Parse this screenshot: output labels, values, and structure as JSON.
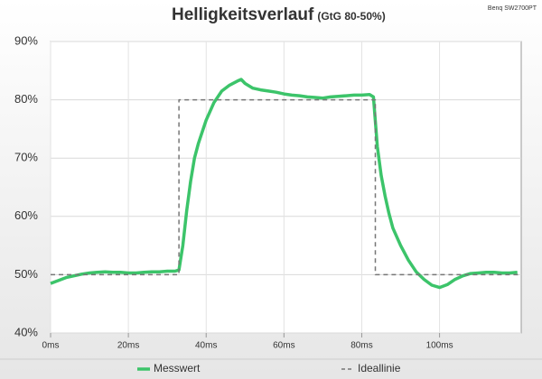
{
  "chart_data": {
    "type": "line",
    "title": "Helligkeitsverlauf",
    "subtitle": "(GtG 80-50%)",
    "source": "Benq SW2700PT",
    "xlim": [
      0,
      121
    ],
    "xticks": [
      {
        "value": 0,
        "label": "0ms"
      },
      {
        "value": 20,
        "label": "20ms"
      },
      {
        "value": 40,
        "label": "40ms"
      },
      {
        "value": 60,
        "label": "60ms"
      },
      {
        "value": 80,
        "label": "80ms"
      },
      {
        "value": 100,
        "label": "100ms"
      }
    ],
    "ylim": [
      40,
      90
    ],
    "yticks": [
      {
        "value": 40,
        "label": "40%"
      },
      {
        "value": 50,
        "label": "50%"
      },
      {
        "value": 60,
        "label": "60%"
      },
      {
        "value": 70,
        "label": "70%"
      },
      {
        "value": 80,
        "label": "80%"
      },
      {
        "value": 90,
        "label": "90%"
      }
    ],
    "grid": true,
    "series": [
      {
        "name": "Messwert",
        "color": "#3cc46a",
        "dash": false,
        "x": [
          0,
          2,
          4,
          6,
          8,
          10,
          12,
          14,
          16,
          18,
          20,
          22,
          24,
          26,
          28,
          30,
          32,
          33,
          34,
          35,
          36,
          37,
          38,
          39,
          40,
          42,
          44,
          46,
          48,
          49,
          50,
          52,
          54,
          56,
          58,
          60,
          62,
          64,
          66,
          68,
          70,
          72,
          74,
          76,
          78,
          80,
          82,
          83,
          84,
          85,
          86,
          87,
          88,
          90,
          92,
          94,
          96,
          98,
          100,
          102,
          104,
          106,
          108,
          110,
          112,
          114,
          116,
          118,
          120
        ],
        "values": [
          48.5,
          49,
          49.5,
          49.8,
          50.1,
          50.3,
          50.4,
          50.5,
          50.4,
          50.4,
          50.3,
          50.3,
          50.4,
          50.5,
          50.5,
          50.6,
          50.6,
          50.8,
          55,
          61,
          66,
          70,
          72.5,
          74.5,
          76.5,
          79.5,
          81.5,
          82.5,
          83.2,
          83.5,
          82.8,
          82,
          81.7,
          81.5,
          81.3,
          81,
          80.8,
          80.7,
          80.5,
          80.4,
          80.3,
          80.5,
          80.6,
          80.7,
          80.8,
          80.8,
          80.9,
          80.5,
          72,
          67,
          63.5,
          60.5,
          58,
          55,
          52.5,
          50.5,
          49.2,
          48.2,
          47.8,
          48.3,
          49.2,
          49.8,
          50.2,
          50.3,
          50.4,
          50.4,
          50.3,
          50.3,
          50.4
        ]
      },
      {
        "name": "Ideallinie",
        "color": "#777777",
        "dash": true,
        "x": [
          0,
          33,
          33,
          83.5,
          83.5,
          121
        ],
        "values": [
          50,
          50,
          80,
          80,
          50,
          50
        ]
      }
    ]
  }
}
